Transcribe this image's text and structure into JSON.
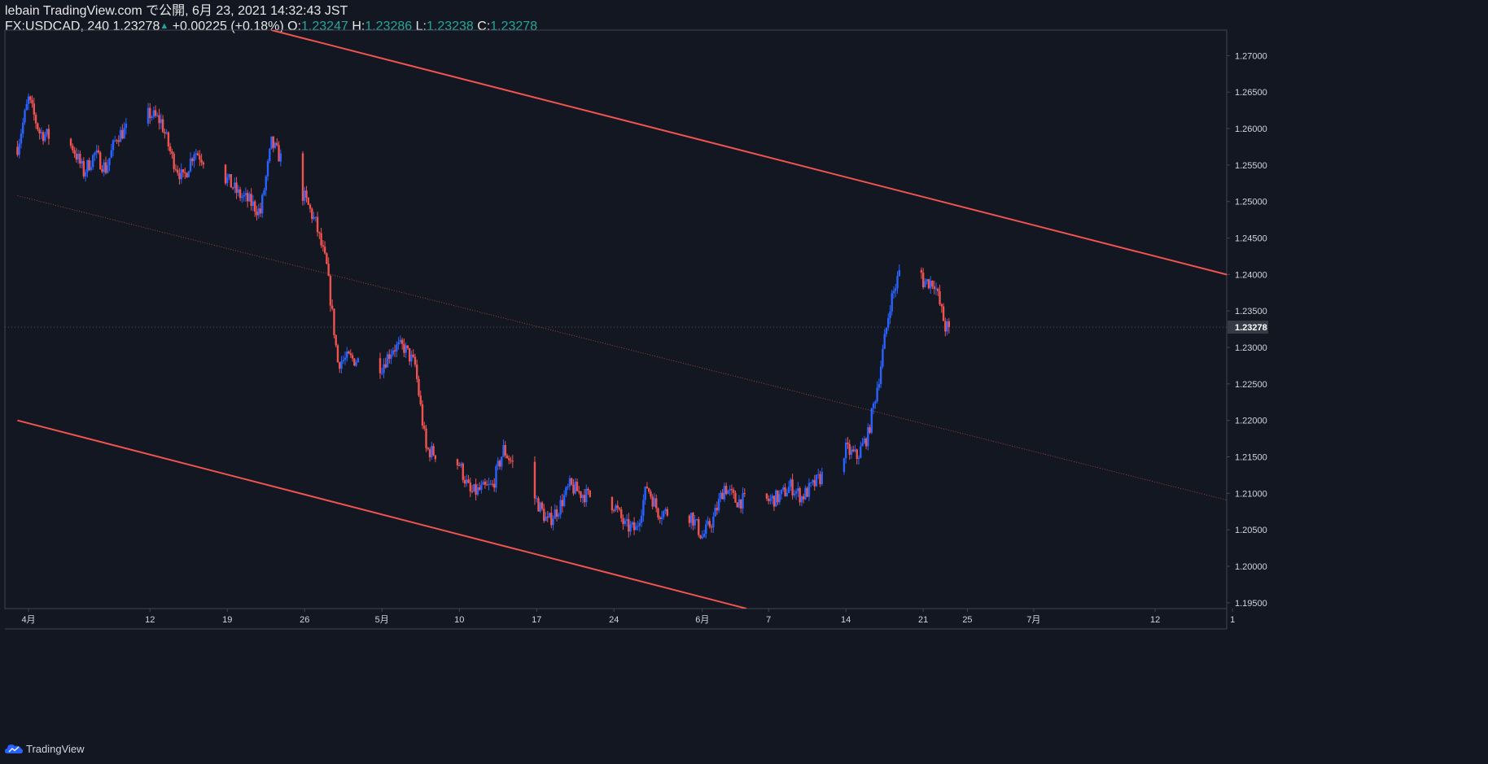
{
  "header": {
    "publish_line": "lebain TradingView.com で公開, 6月 23, 2021 14:32:43 JST",
    "symbol": "FX:USDCAD, 240",
    "last": "1.23278",
    "change": "+0.00225 (+0.18%)",
    "o_label": "O:",
    "o_value": "1.23247",
    "h_label": "H:",
    "h_value": "1.23286",
    "l_label": "L:",
    "l_value": "1.23238",
    "c_label": "C:",
    "c_value": "1.23278",
    "change_arrow_icon": "triangle-up-icon"
  },
  "footer": {
    "brand": "TradingView",
    "logo_icon": "tradingview-cloud-icon"
  },
  "colors": {
    "background": "#131722",
    "up_candle": "#2962ff",
    "down_candle": "#ef5350",
    "channel_line": "#f05350",
    "axis_text": "#d1d4dc",
    "price_label_bg": "#363a45",
    "up_text": "#26a69a"
  },
  "chart_data": {
    "type": "candlestick",
    "title": "",
    "symbol": "FX:USDCAD",
    "interval": "240",
    "last_price": 1.23278,
    "last_price_label": "1.23278",
    "ylim": [
      1.1942,
      1.2735
    ],
    "y_ticks": [
      "1.27000",
      "1.26500",
      "1.26000",
      "1.25500",
      "1.25000",
      "1.24500",
      "1.24000",
      "1.23500",
      "1.23000",
      "1.22500",
      "1.22000",
      "1.21500",
      "1.21000",
      "1.20500",
      "1.20000",
      "1.19500"
    ],
    "x_ticks": [
      "4月",
      "12",
      "19",
      "26",
      "5月",
      "10",
      "17",
      "24",
      "6月",
      "7",
      "14",
      "21",
      "25",
      "7月",
      "12",
      "1"
    ],
    "x_tick_dates": [
      "2021-04-01",
      "2021-04-12",
      "2021-04-19",
      "2021-04-26",
      "2021-05-03",
      "2021-05-10",
      "2021-05-17",
      "2021-05-24",
      "2021-06-01",
      "2021-06-07",
      "2021-06-14",
      "2021-06-21",
      "2021-06-25",
      "2021-07-01",
      "2021-07-12",
      "2021-07-19"
    ],
    "series": [
      {
        "date": "2021-03-31",
        "close": 1.2575
      },
      {
        "date": "2021-04-01",
        "close": 1.264
      },
      {
        "date": "2021-04-02",
        "close": 1.2595
      },
      {
        "date": "2021-04-05",
        "close": 1.2575
      },
      {
        "date": "2021-04-06",
        "close": 1.254
      },
      {
        "date": "2021-04-07",
        "close": 1.2565
      },
      {
        "date": "2021-04-08",
        "close": 1.2545
      },
      {
        "date": "2021-04-09",
        "close": 1.259
      },
      {
        "date": "2021-04-12",
        "close": 1.262
      },
      {
        "date": "2021-04-13",
        "close": 1.261
      },
      {
        "date": "2021-04-14",
        "close": 1.256
      },
      {
        "date": "2021-04-15",
        "close": 1.253
      },
      {
        "date": "2021-04-16",
        "close": 1.257
      },
      {
        "date": "2021-04-19",
        "close": 1.253
      },
      {
        "date": "2021-04-20",
        "close": 1.251
      },
      {
        "date": "2021-04-21",
        "close": 1.25
      },
      {
        "date": "2021-04-22",
        "close": 1.2485
      },
      {
        "date": "2021-04-23",
        "close": 1.258
      },
      {
        "date": "2021-04-26",
        "close": 1.2505
      },
      {
        "date": "2021-04-27",
        "close": 1.247
      },
      {
        "date": "2021-04-28",
        "close": 1.241
      },
      {
        "date": "2021-04-29",
        "close": 1.228
      },
      {
        "date": "2021-04-30",
        "close": 1.2285
      },
      {
        "date": "2021-05-03",
        "close": 1.2275
      },
      {
        "date": "2021-05-04",
        "close": 1.23
      },
      {
        "date": "2021-05-05",
        "close": 1.23
      },
      {
        "date": "2021-05-06",
        "close": 1.2275
      },
      {
        "date": "2021-05-07",
        "close": 1.216
      },
      {
        "date": "2021-05-10",
        "close": 1.214
      },
      {
        "date": "2021-05-11",
        "close": 1.21
      },
      {
        "date": "2021-05-12",
        "close": 1.2105
      },
      {
        "date": "2021-05-13",
        "close": 1.211
      },
      {
        "date": "2021-05-14",
        "close": 1.216
      },
      {
        "date": "2021-05-17",
        "close": 1.209
      },
      {
        "date": "2021-05-18",
        "close": 1.206
      },
      {
        "date": "2021-05-19",
        "close": 1.208
      },
      {
        "date": "2021-05-20",
        "close": 1.211
      },
      {
        "date": "2021-05-21",
        "close": 1.21
      },
      {
        "date": "2021-05-24",
        "close": 1.2085
      },
      {
        "date": "2021-05-25",
        "close": 1.2055
      },
      {
        "date": "2021-05-26",
        "close": 1.205
      },
      {
        "date": "2021-05-27",
        "close": 1.211
      },
      {
        "date": "2021-05-28",
        "close": 1.2075
      },
      {
        "date": "2021-05-31",
        "close": 1.207
      },
      {
        "date": "2021-06-01",
        "close": 1.204
      },
      {
        "date": "2021-06-02",
        "close": 1.2065
      },
      {
        "date": "2021-06-03",
        "close": 1.211
      },
      {
        "date": "2021-06-04",
        "close": 1.209
      },
      {
        "date": "2021-06-07",
        "close": 1.209
      },
      {
        "date": "2021-06-08",
        "close": 1.2095
      },
      {
        "date": "2021-06-09",
        "close": 1.211
      },
      {
        "date": "2021-06-10",
        "close": 1.2095
      },
      {
        "date": "2021-06-11",
        "close": 1.211
      },
      {
        "date": "2021-06-14",
        "close": 1.216
      },
      {
        "date": "2021-06-15",
        "close": 1.215
      },
      {
        "date": "2021-06-16",
        "close": 1.218
      },
      {
        "date": "2021-06-17",
        "close": 1.226
      },
      {
        "date": "2021-06-18",
        "close": 1.236
      },
      {
        "date": "2021-06-20",
        "close": 1.246
      },
      {
        "date": "2021-06-21",
        "close": 1.239
      },
      {
        "date": "2021-06-22",
        "close": 1.239
      },
      {
        "date": "2021-06-23",
        "close": 1.23278
      }
    ],
    "trend_lines": [
      {
        "name": "upper-channel",
        "style": "solid",
        "points": [
          [
            "2021-04-23",
            1.2735
          ],
          [
            "2021-07-20",
            1.2394
          ]
        ]
      },
      {
        "name": "middle-channel",
        "style": "dotted",
        "points": [
          [
            "2021-03-31",
            1.2508
          ],
          [
            "2021-07-20",
            1.2085
          ]
        ]
      },
      {
        "name": "lower-channel",
        "style": "solid",
        "points": [
          [
            "2021-03-31",
            1.22
          ],
          [
            "2021-06-05",
            1.1942
          ]
        ]
      }
    ],
    "grid": false,
    "legend": "none"
  }
}
